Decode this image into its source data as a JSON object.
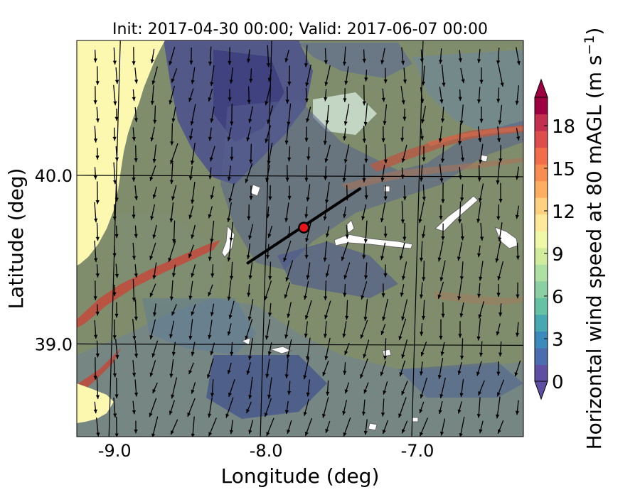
{
  "title": "Init: 2017-04-30 00:00; Valid: 2017-06-07 00:00",
  "axes": {
    "xlabel": "Longitude (deg)",
    "ylabel": "Latitude (deg)",
    "xticks": [
      {
        "value": -9.0,
        "label": "-9.0"
      },
      {
        "value": -8.0,
        "label": "-8.0"
      },
      {
        "value": -7.0,
        "label": "-7.0"
      }
    ],
    "yticks": [
      {
        "value": 40.0,
        "label": "40.0"
      },
      {
        "value": 39.0,
        "label": "39.0"
      }
    ],
    "lon_range": [
      -9.25,
      -6.3
    ],
    "lat_range": [
      38.45,
      40.8
    ]
  },
  "colorbar": {
    "label": "Horizontal wind speed at 80 mAGL (m s",
    "label_sup": "−1",
    "label_close": ")",
    "ticks": [
      {
        "value": 0,
        "label": "0"
      },
      {
        "value": 3,
        "label": "3"
      },
      {
        "value": 6,
        "label": "6"
      },
      {
        "value": 9,
        "label": "9"
      },
      {
        "value": 12,
        "label": "12"
      },
      {
        "value": 15,
        "label": "15"
      },
      {
        "value": 18,
        "label": "18"
      }
    ],
    "range": [
      0,
      20
    ],
    "colors": [
      "#5e4fa2",
      "#4b6db0",
      "#3a8bbb",
      "#48a8b2",
      "#66c2a5",
      "#8bd0a4",
      "#ade0a2",
      "#d1ec9c",
      "#eef8a6",
      "#fee89a",
      "#fed07f",
      "#fdae61",
      "#f88d52",
      "#f26d4a",
      "#dc4d4b",
      "#c3304f",
      "#9e0142"
    ]
  },
  "map": {
    "ocean_color": "#fdf8b0",
    "land_base_color": "#7f8d6c",
    "transect": {
      "start": [
        -8.12,
        39.48
      ],
      "end": [
        -7.38,
        39.92
      ]
    },
    "site": {
      "lon": -7.75,
      "lat": 39.69,
      "color": "#e8141b"
    }
  }
}
